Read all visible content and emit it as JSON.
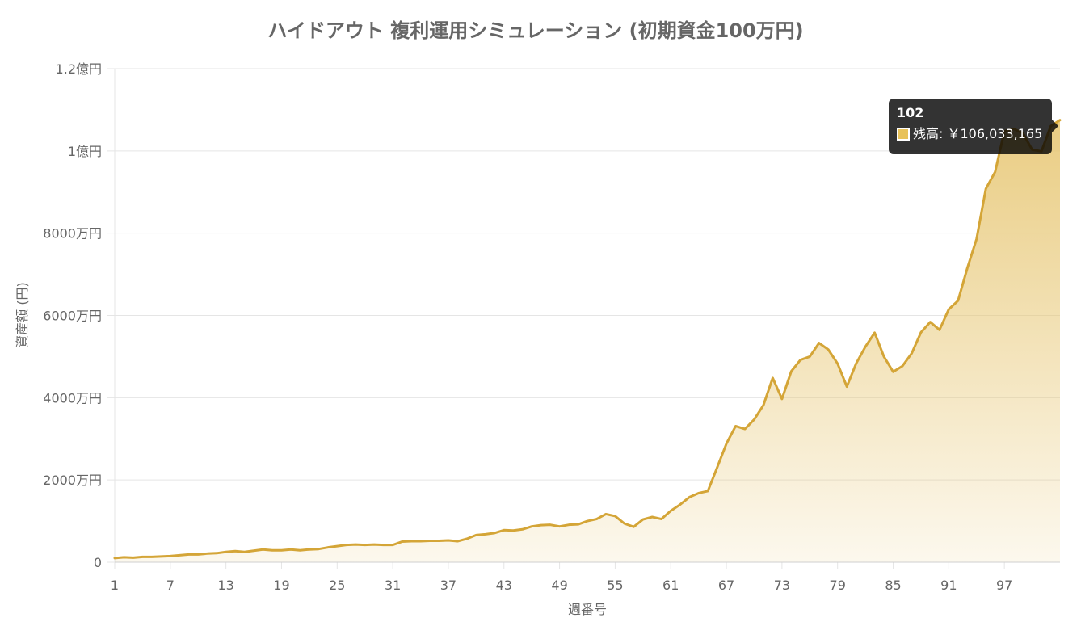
{
  "colors": {
    "line": "#d4a537",
    "fill_top": "#e6c46d",
    "tooltip_swatch": "#e8c25a"
  },
  "chart_data": {
    "type": "area",
    "title": "ハイドアウト 複利運用シミュレーション (初期資金100万円)",
    "xlabel": "週番号",
    "ylabel": "資産額 (円)",
    "ylim": [
      0,
      120000000
    ],
    "yticks": [
      {
        "value": 0,
        "label": "0"
      },
      {
        "value": 20000000,
        "label": "2000万円"
      },
      {
        "value": 40000000,
        "label": "4000万円"
      },
      {
        "value": 60000000,
        "label": "6000万円"
      },
      {
        "value": 80000000,
        "label": "8000万円"
      },
      {
        "value": 100000000,
        "label": "1億円"
      },
      {
        "value": 120000000,
        "label": "1.2億円"
      }
    ],
    "xrange": [
      1,
      103
    ],
    "xticks": [
      1,
      7,
      13,
      19,
      25,
      31,
      37,
      43,
      49,
      55,
      61,
      67,
      73,
      79,
      85,
      91,
      97
    ],
    "grid": true,
    "legend": "none",
    "series": [
      {
        "x": [
          1,
          2,
          3,
          4,
          5,
          6,
          7,
          8,
          9,
          10,
          11,
          12,
          13,
          14,
          15,
          16,
          17,
          18,
          19,
          20,
          21,
          22,
          23,
          24,
          25,
          26,
          27,
          28,
          29,
          30,
          31,
          32,
          33,
          34,
          35,
          36,
          37,
          38,
          39,
          40,
          41,
          42,
          43,
          44,
          45,
          46,
          47,
          48,
          49,
          50,
          51,
          52,
          53,
          54,
          55,
          56,
          57,
          58,
          59,
          60,
          61,
          62,
          63,
          64,
          65,
          66,
          67,
          68,
          69,
          70,
          71,
          72,
          73,
          74,
          75,
          76,
          77,
          78,
          79,
          80,
          81,
          82,
          83,
          84,
          85,
          86,
          87,
          88,
          89,
          90,
          91,
          92,
          93,
          94,
          95,
          96,
          97,
          98,
          99,
          100,
          101,
          102,
          103
        ],
        "values": [
          1000000,
          1200000,
          1100000,
          1300000,
          1300000,
          1400000,
          1500000,
          1700000,
          1900000,
          1900000,
          2100000,
          2200000,
          2500000,
          2700000,
          2500000,
          2800000,
          3100000,
          2900000,
          2900000,
          3100000,
          2900000,
          3100000,
          3200000,
          3600000,
          3900000,
          4200000,
          4300000,
          4200000,
          4300000,
          4200000,
          4200000,
          5000000,
          5100000,
          5100000,
          5200000,
          5200000,
          5300000,
          5100000,
          5700000,
          6600000,
          6800000,
          7100000,
          7800000,
          7700000,
          8000000,
          8700000,
          9000000,
          9100000,
          8700000,
          9100000,
          9200000,
          10000000,
          10500000,
          11700000,
          11200000,
          9400000,
          8600000,
          10400000,
          11000000,
          10500000,
          12500000,
          14000000,
          15800000,
          16800000,
          17300000,
          23000000,
          28800000,
          33100000,
          32400000,
          34700000,
          38200000,
          44800000,
          39700000,
          46400000,
          49200000,
          50000000,
          53300000,
          51700000,
          48300000,
          42700000,
          48300000,
          52400000,
          55800000,
          50000000,
          46300000,
          47700000,
          50800000,
          55900000,
          58400000,
          56500000,
          61500000,
          63600000,
          71500000,
          78600000,
          90800000,
          94900000,
          104800000,
          105400000,
          104300000,
          100300000,
          99900000,
          106033165,
          107500000
        ]
      }
    ],
    "tooltip": {
      "title": "102",
      "label": "残高: ￥106,033,165"
    }
  }
}
